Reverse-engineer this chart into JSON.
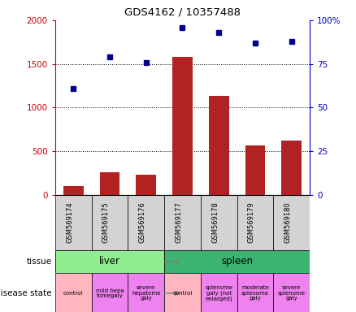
{
  "title": "GDS4162 / 10357488",
  "samples": [
    "GSM569174",
    "GSM569175",
    "GSM569176",
    "GSM569177",
    "GSM569178",
    "GSM569179",
    "GSM569180"
  ],
  "counts": [
    100,
    260,
    230,
    1580,
    1130,
    570,
    620
  ],
  "percentiles": [
    61,
    79,
    76,
    96,
    93,
    87,
    88
  ],
  "ylim_left": [
    0,
    2000
  ],
  "ylim_right": [
    0,
    100
  ],
  "yticks_left": [
    0,
    500,
    1000,
    1500,
    2000
  ],
  "ytick_labels_left": [
    "0",
    "500",
    "1000",
    "1500",
    "2000"
  ],
  "yticks_right": [
    0,
    25,
    50,
    75,
    100
  ],
  "ytick_labels_right": [
    "0",
    "25",
    "50",
    "75",
    "100%"
  ],
  "bar_color": "#b22222",
  "dot_color": "#00008b",
  "tissue_liver_color": "#90ee90",
  "tissue_spleen_color": "#3cb371",
  "disease_states": [
    {
      "label": "control",
      "span": 1,
      "color": "#ffb6c1"
    },
    {
      "label": "mild hepa\ntomegaly",
      "span": 1,
      "color": "#ee82ee"
    },
    {
      "label": "severe\nhepatome\ngaly",
      "span": 1,
      "color": "#ee82ee"
    },
    {
      "label": "control",
      "span": 1,
      "color": "#ffb6c1"
    },
    {
      "label": "splenome\ngaly (not\nenlarged)",
      "span": 1,
      "color": "#ee82ee"
    },
    {
      "label": "moderate\nsplenome\ngaly",
      "span": 1,
      "color": "#ee82ee"
    },
    {
      "label": "severe\nsplenome\ngaly",
      "span": 1,
      "color": "#ee82ee"
    }
  ],
  "sample_bg_color": "#d3d3d3",
  "left_axis_color": "#cc0000",
  "right_axis_color": "#0000cc",
  "legend_count_color": "#cc0000",
  "legend_pct_color": "#0000cc",
  "plot_bg_color": "#ffffff"
}
